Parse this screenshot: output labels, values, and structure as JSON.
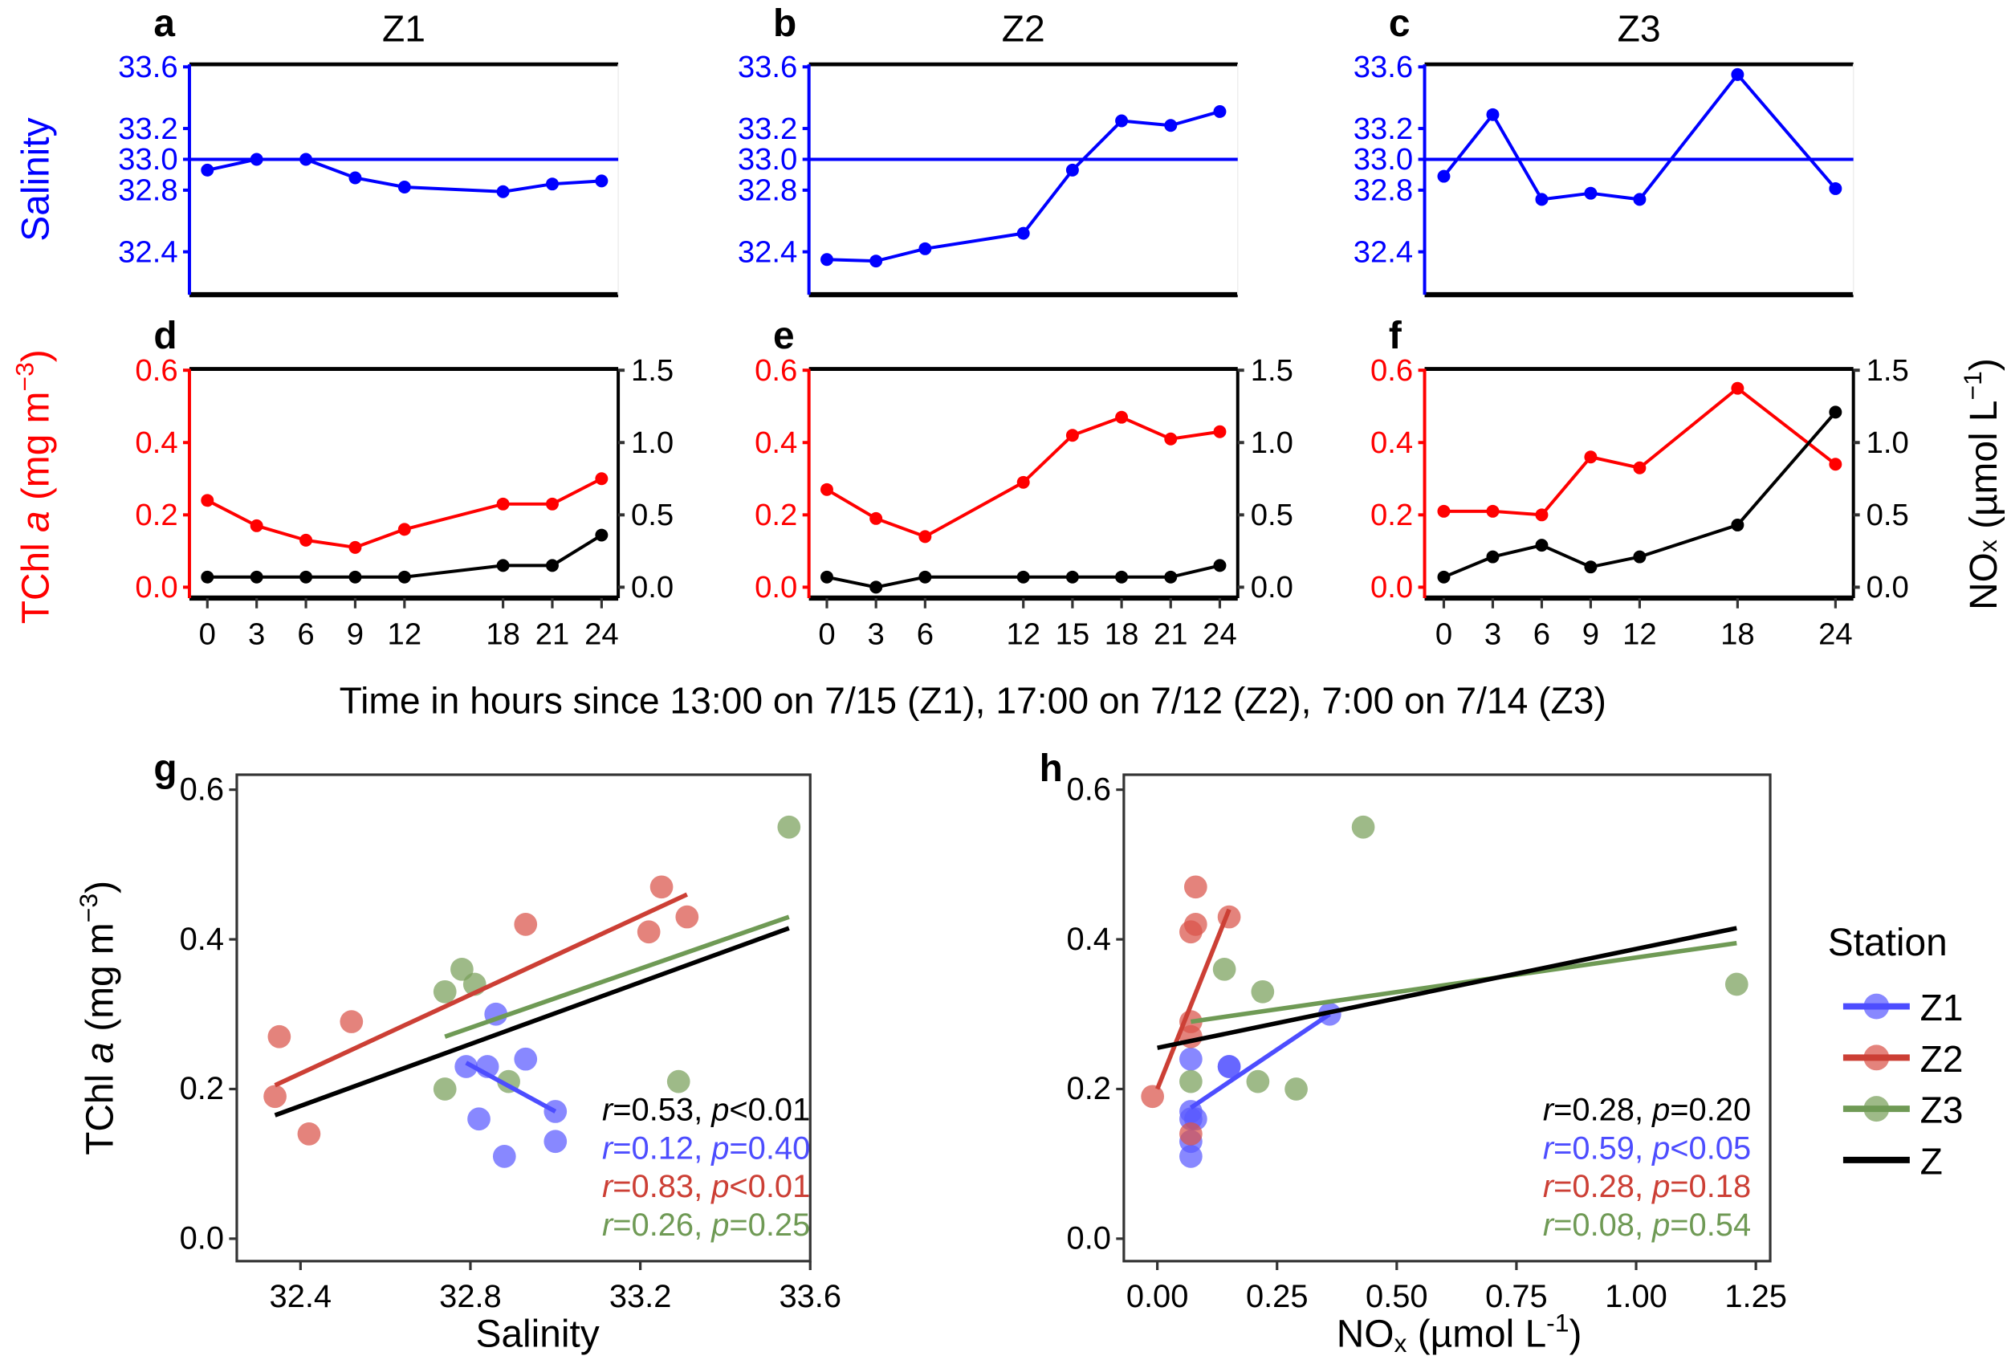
{
  "colors": {
    "salinity": "#0000ff",
    "tchl": "#ff0000",
    "nox": "#000000",
    "Z1": "#5a5aff",
    "Z2": "#d9534a",
    "Z3": "#78a05a",
    "Z": "#000000",
    "Z1_line": "#4d4dff",
    "Z2_line": "#cc3f35",
    "Z3_line": "#6f9a55"
  },
  "chart_data": [
    {
      "type": "line",
      "panel": "a",
      "title": "Z1",
      "ylabel": "Salinity",
      "ylim": [
        32.2,
        33.65
      ],
      "yticks": [
        "32.4",
        "32.8",
        "33.0",
        "33.2",
        "33.6"
      ],
      "reference_line": 33.0,
      "series": [
        {
          "name": "Salinity",
          "x": [
            0,
            3,
            6,
            9,
            12,
            18,
            21,
            24
          ],
          "y": [
            32.93,
            33.0,
            33.0,
            32.88,
            32.82,
            32.79,
            32.84,
            32.86
          ]
        }
      ]
    },
    {
      "type": "line",
      "panel": "b",
      "title": "Z2",
      "ylim": [
        32.2,
        33.65
      ],
      "yticks": [
        "32.4",
        "32.8",
        "33.0",
        "33.2",
        "33.6"
      ],
      "reference_line": 33.0,
      "series": [
        {
          "name": "Salinity",
          "x": [
            0,
            3,
            6,
            12,
            15,
            18,
            21,
            24
          ],
          "y": [
            32.35,
            32.34,
            32.42,
            32.52,
            32.93,
            33.25,
            33.22,
            33.31
          ]
        }
      ]
    },
    {
      "type": "line",
      "panel": "c",
      "title": "Z3",
      "ylim": [
        32.2,
        33.65
      ],
      "yticks": [
        "32.4",
        "32.8",
        "33.0",
        "33.2",
        "33.6"
      ],
      "reference_line": 33.0,
      "series": [
        {
          "name": "Salinity",
          "x": [
            0,
            3,
            6,
            9,
            12,
            18,
            24
          ],
          "y": [
            32.89,
            33.29,
            32.74,
            32.78,
            32.74,
            33.55,
            32.81
          ]
        }
      ]
    },
    {
      "type": "line",
      "panel": "d",
      "ylabel": "TChl a (mg m-3)",
      "ylim": [
        0,
        0.6
      ],
      "y2lim": [
        0,
        1.5
      ],
      "yticks": [
        "0.0",
        "0.2",
        "0.4",
        "0.6"
      ],
      "y2ticks": [
        "0.0",
        "0.5",
        "1.0",
        "1.5"
      ],
      "xticks": [
        "0",
        "3",
        "6",
        "9",
        "12",
        "18",
        "21",
        "24"
      ],
      "series": [
        {
          "name": "TChl a",
          "x": [
            0,
            3,
            6,
            9,
            12,
            18,
            21,
            24
          ],
          "y": [
            0.24,
            0.17,
            0.13,
            0.11,
            0.16,
            0.23,
            0.23,
            0.3
          ]
        },
        {
          "name": "NOx",
          "axis": "right",
          "x": [
            0,
            3,
            6,
            9,
            12,
            18,
            21,
            24
          ],
          "y": [
            0.07,
            0.07,
            0.07,
            0.07,
            0.07,
            0.15,
            0.15,
            0.36
          ]
        }
      ]
    },
    {
      "type": "line",
      "panel": "e",
      "ylim": [
        0,
        0.6
      ],
      "y2lim": [
        0,
        1.5
      ],
      "yticks": [
        "0.0",
        "0.2",
        "0.4",
        "0.6"
      ],
      "y2ticks": [
        "0.0",
        "0.5",
        "1.0",
        "1.5"
      ],
      "xticks": [
        "0",
        "3",
        "6",
        "12",
        "15",
        "18",
        "21",
        "24"
      ],
      "series": [
        {
          "name": "TChl a",
          "x": [
            0,
            3,
            6,
            12,
            15,
            18,
            21,
            24
          ],
          "y": [
            0.27,
            0.19,
            0.14,
            0.29,
            0.42,
            0.47,
            0.41,
            0.43
          ]
        },
        {
          "name": "NOx",
          "axis": "right",
          "x": [
            0,
            3,
            6,
            12,
            15,
            18,
            21,
            24
          ],
          "y": [
            0.07,
            0.0,
            0.07,
            0.07,
            0.07,
            0.07,
            0.07,
            0.15
          ]
        }
      ]
    },
    {
      "type": "line",
      "panel": "f",
      "y2label": "NOx (µmol L-1)",
      "ylim": [
        0,
        0.6
      ],
      "y2lim": [
        0,
        1.5
      ],
      "yticks": [
        "0.0",
        "0.2",
        "0.4",
        "0.6"
      ],
      "y2ticks": [
        "0.0",
        "0.5",
        "1.0",
        "1.5"
      ],
      "xticks": [
        "0",
        "3",
        "6",
        "9",
        "12",
        "18",
        "24"
      ],
      "series": [
        {
          "name": "TChl a",
          "x": [
            0,
            3,
            6,
            9,
            12,
            18,
            24
          ],
          "y": [
            0.21,
            0.21,
            0.2,
            0.36,
            0.33,
            0.55,
            0.34
          ]
        },
        {
          "name": "NOx",
          "axis": "right",
          "x": [
            0,
            3,
            6,
            9,
            12,
            18,
            24
          ],
          "y": [
            0.07,
            0.21,
            0.29,
            0.14,
            0.21,
            0.43,
            1.21
          ]
        }
      ]
    },
    {
      "type": "scatter",
      "panel": "g",
      "xlabel": "Salinity",
      "ylabel": "TChl a (mg m-3)",
      "xlim": [
        32.25,
        33.6
      ],
      "ylim": [
        -0.03,
        0.62
      ],
      "xticks": [
        "32.4",
        "32.8",
        "33.2",
        "33.6"
      ],
      "yticks": [
        "0.0",
        "0.2",
        "0.4",
        "0.6"
      ],
      "series": [
        {
          "name": "Z1",
          "x": [
            32.93,
            33.0,
            33.0,
            32.88,
            32.82,
            32.79,
            32.84,
            32.86
          ],
          "y": [
            0.24,
            0.17,
            0.13,
            0.11,
            0.16,
            0.23,
            0.23,
            0.3
          ],
          "fit": [
            [
              32.79,
              0.235
            ],
            [
              33.0,
              0.17
            ]
          ]
        },
        {
          "name": "Z2",
          "x": [
            32.35,
            32.34,
            32.42,
            32.52,
            32.93,
            33.25,
            33.22,
            33.31
          ],
          "y": [
            0.27,
            0.19,
            0.14,
            0.29,
            0.42,
            0.47,
            0.41,
            0.43
          ],
          "fit": [
            [
              32.34,
              0.205
            ],
            [
              33.31,
              0.46
            ]
          ]
        },
        {
          "name": "Z3",
          "x": [
            32.89,
            33.29,
            32.74,
            32.78,
            32.74,
            33.55,
            32.81
          ],
          "y": [
            0.21,
            0.21,
            0.2,
            0.36,
            0.33,
            0.55,
            0.34
          ],
          "fit": [
            [
              32.74,
              0.27
            ],
            [
              33.55,
              0.43
            ]
          ]
        },
        {
          "name": "Z",
          "fit": [
            [
              32.34,
              0.165
            ],
            [
              33.55,
              0.415
            ]
          ]
        }
      ],
      "annotations": [
        {
          "series": "Z",
          "r": "=0.53, ",
          "p": "<0.01"
        },
        {
          "series": "Z1",
          "r": "=0.12, ",
          "p": "=0.40"
        },
        {
          "series": "Z2",
          "r": "=0.83, ",
          "p": "<0.01"
        },
        {
          "series": "Z3",
          "r": "=0.26, ",
          "p": "=0.25"
        }
      ]
    },
    {
      "type": "scatter",
      "panel": "h",
      "xlabel": "NOx (µmol L-1)",
      "xlim": [
        -0.07,
        1.28
      ],
      "ylim": [
        -0.03,
        0.62
      ],
      "xticks": [
        "0.00",
        "0.25",
        "0.50",
        "0.75",
        "1.00",
        "1.25"
      ],
      "yticks": [
        "0.0",
        "0.2",
        "0.4",
        "0.6"
      ],
      "series": [
        {
          "name": "Z1",
          "x": [
            0.07,
            0.07,
            0.07,
            0.07,
            0.07,
            0.15,
            0.15,
            0.36,
            0.08
          ],
          "y": [
            0.24,
            0.17,
            0.13,
            0.11,
            0.16,
            0.23,
            0.23,
            0.3,
            0.16
          ],
          "fit": [
            [
              0.07,
              0.175
            ],
            [
              0.36,
              0.3
            ]
          ]
        },
        {
          "name": "Z2",
          "x": [
            0.07,
            -0.01,
            0.07,
            0.07,
            0.08,
            0.08,
            0.07,
            0.15
          ],
          "y": [
            0.27,
            0.19,
            0.14,
            0.29,
            0.42,
            0.47,
            0.41,
            0.43
          ],
          "fit": [
            [
              0.0,
              0.2
            ],
            [
              0.15,
              0.44
            ]
          ]
        },
        {
          "name": "Z3",
          "x": [
            0.07,
            0.21,
            0.29,
            0.14,
            0.22,
            0.43,
            1.21
          ],
          "y": [
            0.21,
            0.21,
            0.2,
            0.36,
            0.33,
            0.55,
            0.34
          ],
          "fit": [
            [
              0.07,
              0.29
            ],
            [
              1.21,
              0.395
            ]
          ]
        },
        {
          "name": "Z",
          "fit": [
            [
              0.0,
              0.255
            ],
            [
              1.21,
              0.415
            ]
          ]
        }
      ],
      "annotations": [
        {
          "series": "Z",
          "r": "=0.28, ",
          "p": "=0.20"
        },
        {
          "series": "Z1",
          "r": "=0.59, ",
          "p": "<0.05"
        },
        {
          "series": "Z2",
          "r": "=0.28, ",
          "p": "=0.18"
        },
        {
          "series": "Z3",
          "r": "=0.08, ",
          "p": "=0.54"
        }
      ]
    }
  ],
  "texts": {
    "letters": [
      "a",
      "b",
      "c",
      "d",
      "e",
      "f",
      "g",
      "h"
    ],
    "titles": [
      "Z1",
      "Z2",
      "Z3"
    ],
    "salinity_label": "Salinity",
    "tchl_label_pre": "TChl ",
    "tchl_label_a": "a",
    "tchl_label_post": " (mg m",
    "tchl_label_sup": "−3",
    "tchl_label_close": ")",
    "nox_label_pre": "NO",
    "nox_label_sub": "x",
    "nox_label_post": " (µmol L",
    "nox_label_sup": "−1",
    "nox_label_close": ")",
    "time_xlabel": "Time in hours since 13:00 on 7/15 (Z1), 17:00 on 7/12 (Z2), 7:00 on 7/14 (Z3)",
    "g_xlabel": "Salinity",
    "h_xlabel_pre": "NO",
    "h_xlabel_sub": "x",
    "h_xlabel_post": " (µmol L",
    "h_xlabel_sup": "-1",
    "h_xlabel_close": ")",
    "r_label": "r",
    "p_label": "p",
    "legend_title": "Station",
    "legend_items": [
      "Z1",
      "Z2",
      "Z3",
      "Z"
    ]
  }
}
